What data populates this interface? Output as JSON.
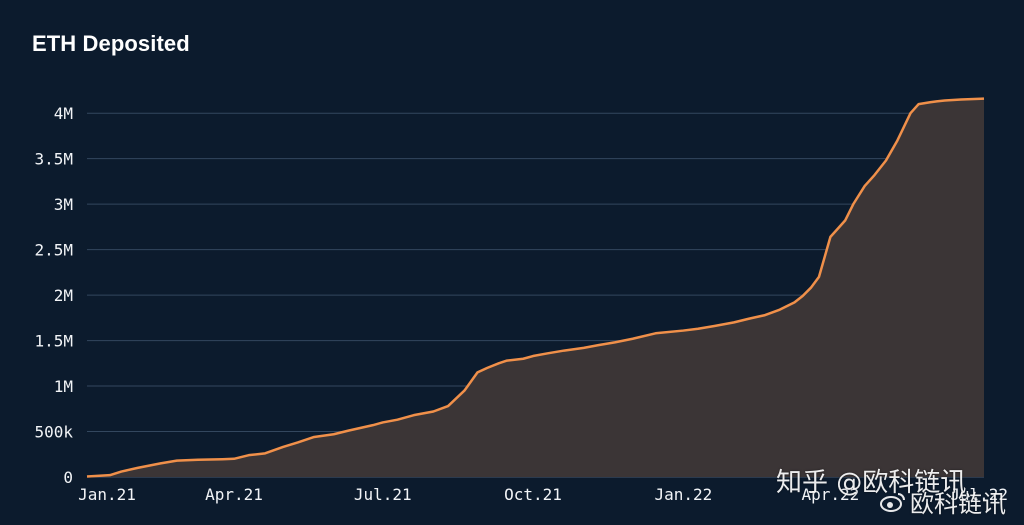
{
  "chart_data": {
    "type": "area",
    "title": "ETH Deposited",
    "xlabel": "",
    "ylabel": "",
    "x_ticks": [
      "Jan.21",
      "Apr.21",
      "Jul.21",
      "Oct.21",
      "Jan.22",
      "Apr.22",
      "Jul.22"
    ],
    "y_ticks": [
      "0",
      "500k",
      "1M",
      "1.5M",
      "2M",
      "2.5M",
      "3M",
      "3.5M",
      "4M"
    ],
    "y_tick_values": [
      0,
      500000,
      1000000,
      1500000,
      2000000,
      2500000,
      3000000,
      3500000,
      4000000
    ],
    "ylim": [
      0,
      4200000
    ],
    "xlim": [
      "2021-01-01",
      "2022-07-04"
    ],
    "grid": true,
    "legend": "none",
    "line_color": "#f0904a",
    "fill_color": "#3b3536",
    "series": [
      {
        "x": [
          "2021-01-01",
          "2021-01-15",
          "2021-01-22",
          "2021-02-01",
          "2021-02-15",
          "2021-02-25",
          "2021-03-10",
          "2021-03-25",
          "2021-04-01",
          "2021-04-10",
          "2021-04-20",
          "2021-05-01",
          "2021-05-10",
          "2021-05-20",
          "2021-06-01",
          "2021-06-10",
          "2021-06-25",
          "2021-07-01",
          "2021-07-10",
          "2021-07-20",
          "2021-08-01",
          "2021-08-10",
          "2021-08-20",
          "2021-08-28",
          "2021-09-03",
          "2021-09-10",
          "2021-09-15",
          "2021-09-25",
          "2021-10-01",
          "2021-10-10",
          "2021-10-20",
          "2021-11-01",
          "2021-11-10",
          "2021-11-20",
          "2021-12-01",
          "2021-12-15",
          "2022-01-01",
          "2022-01-10",
          "2022-01-20",
          "2022-02-01",
          "2022-02-10",
          "2022-02-20",
          "2022-03-01",
          "2022-03-10",
          "2022-03-15",
          "2022-03-20",
          "2022-03-25",
          "2022-04-01",
          "2022-04-05",
          "2022-04-10",
          "2022-04-15",
          "2022-04-22",
          "2022-04-28",
          "2022-05-05",
          "2022-05-12",
          "2022-05-20",
          "2022-05-25",
          "2022-06-01",
          "2022-06-05",
          "2022-06-10",
          "2022-06-20",
          "2022-07-04"
        ],
        "values": [
          5000,
          20000,
          60000,
          100000,
          150000,
          180000,
          190000,
          195000,
          200000,
          240000,
          260000,
          330000,
          380000,
          440000,
          470000,
          510000,
          570000,
          600000,
          630000,
          680000,
          720000,
          780000,
          950000,
          1150000,
          1200000,
          1250000,
          1280000,
          1300000,
          1330000,
          1360000,
          1390000,
          1420000,
          1450000,
          1480000,
          1520000,
          1580000,
          1610000,
          1630000,
          1660000,
          1700000,
          1740000,
          1780000,
          1840000,
          1920000,
          1990000,
          2080000,
          2200000,
          2640000,
          2720000,
          2820000,
          3000000,
          3200000,
          3320000,
          3480000,
          3700000,
          4000000,
          4100000,
          4120000,
          4130000,
          4140000,
          4150000,
          4160000
        ]
      }
    ]
  },
  "watermarks": {
    "zhihu": "知乎 @欧科链讯",
    "weibo": "欧科链讯",
    "weibo_icon": "weibo-icon"
  }
}
